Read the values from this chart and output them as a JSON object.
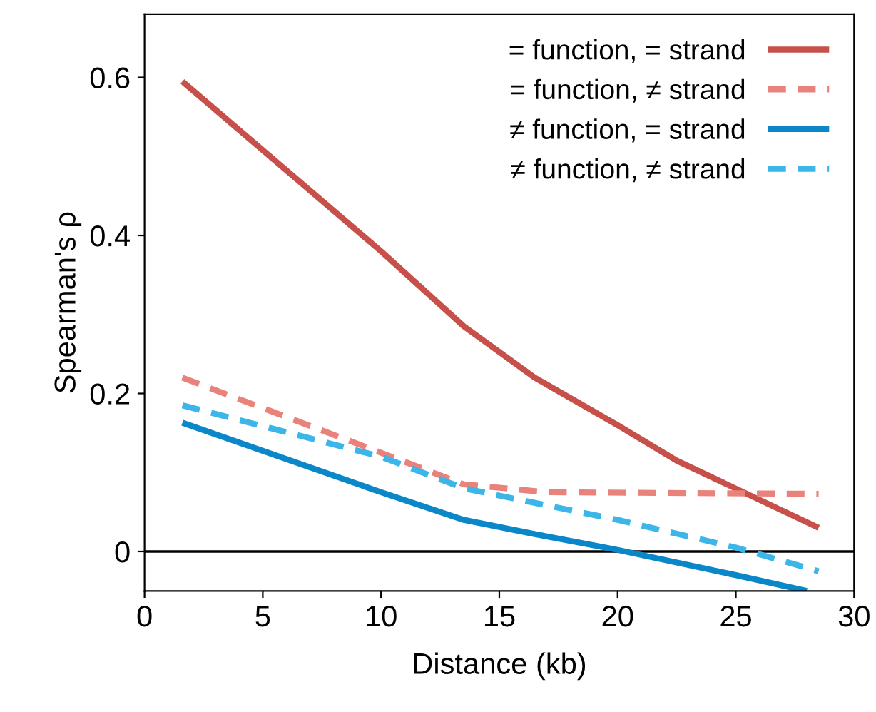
{
  "chart_data": {
    "type": "line",
    "xlabel": "Distance (kb)",
    "ylabel": "Spearman's ρ",
    "xlim": [
      0,
      30
    ],
    "xticks": [
      0,
      5,
      10,
      15,
      20,
      25,
      30
    ],
    "ylim": [
      -0.05,
      0.68
    ],
    "yticks": [
      0,
      0.2,
      0.4,
      0.6
    ],
    "legend": "top right",
    "grid": false,
    "ref_lines": [
      {
        "axis": "y",
        "value": 0,
        "color": "#000000"
      }
    ],
    "series": [
      {
        "name": "= function, = strand",
        "color": "#c8504b",
        "line_style": "solid",
        "x": [
          1.6,
          10,
          13.5,
          16.5,
          20,
          22.5,
          28.5
        ],
        "values": [
          0.595,
          0.38,
          0.285,
          0.22,
          0.16,
          0.115,
          0.03
        ]
      },
      {
        "name": "= function, ≠ strand",
        "color": "#e8827a",
        "line_style": "dashed",
        "x": [
          1.6,
          10,
          13.5,
          17,
          28.5
        ],
        "values": [
          0.22,
          0.125,
          0.085,
          0.075,
          0.073
        ]
      },
      {
        "name": "≠ function, = strand",
        "color": "#0a87c8",
        "line_style": "solid",
        "x": [
          1.6,
          10,
          13.5,
          16.5,
          20,
          25,
          28
        ],
        "values": [
          0.163,
          0.075,
          0.04,
          0.022,
          0.002,
          -0.03,
          -0.05
        ]
      },
      {
        "name": "≠ function, ≠ strand",
        "color": "#3cb6e8",
        "line_style": "dashed",
        "x": [
          1.6,
          10,
          13.5,
          20,
          25,
          28.5
        ],
        "values": [
          0.185,
          0.12,
          0.08,
          0.04,
          0.005,
          -0.025
        ]
      }
    ]
  }
}
